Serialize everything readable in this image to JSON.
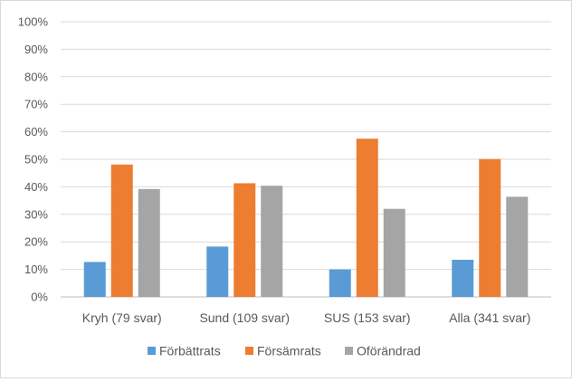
{
  "chart_data": {
    "type": "bar",
    "categories": [
      "Kryh (79 svar)",
      "Sund (109 svar)",
      "SUS (153 svar)",
      "Alla (341 svar)"
    ],
    "series": [
      {
        "name": "Förbättrats",
        "color": "#5B9BD5",
        "values": [
          12.7,
          18.3,
          10.0,
          13.5
        ]
      },
      {
        "name": "Försämrats",
        "color": "#ED7D31",
        "values": [
          48.1,
          41.3,
          57.5,
          50.1
        ]
      },
      {
        "name": "Oförändrad",
        "color": "#A5A5A5",
        "values": [
          39.2,
          40.4,
          32.0,
          36.4
        ]
      }
    ],
    "ylim": [
      0,
      100
    ],
    "yticks": [
      "0%",
      "10%",
      "20%",
      "30%",
      "40%",
      "50%",
      "60%",
      "70%",
      "80%",
      "90%",
      "100%"
    ],
    "grid": true,
    "legend_position": "bottom"
  }
}
